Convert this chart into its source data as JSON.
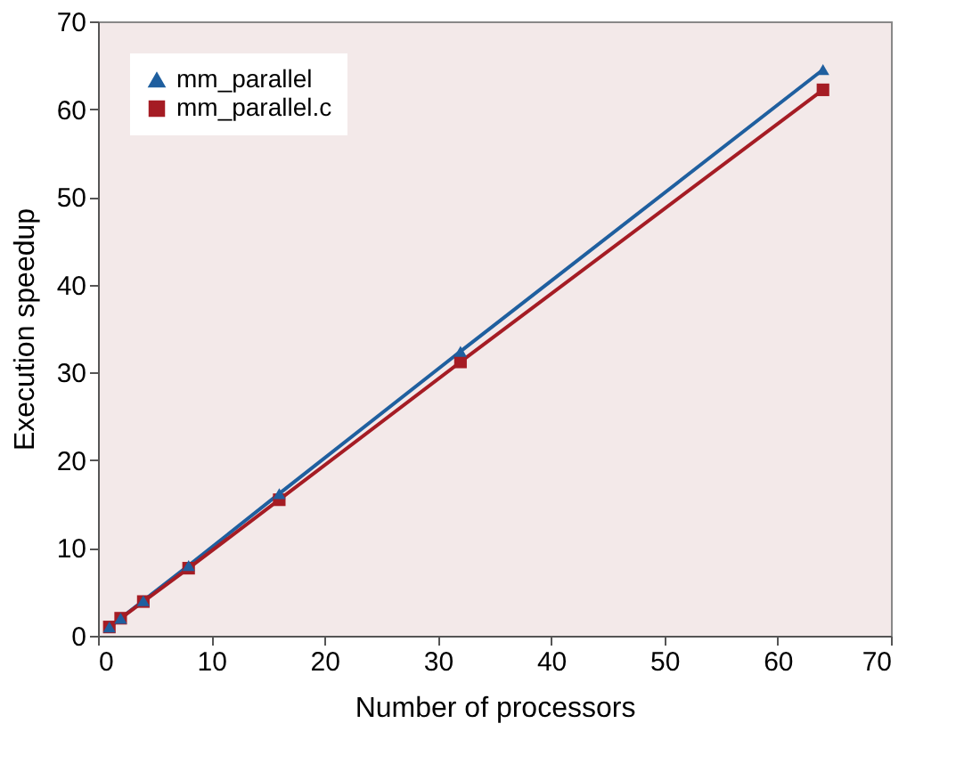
{
  "chart_data": {
    "type": "line",
    "xlabel": "Number of processors",
    "ylabel": "Execution speedup",
    "x": [
      1,
      2,
      4,
      8,
      16,
      32,
      64
    ],
    "series": [
      {
        "name": "mm_parallel",
        "color": "#1f5f9f",
        "marker": "triangle",
        "values": [
          1,
          2,
          4,
          8,
          16.2,
          32.4,
          64.5
        ]
      },
      {
        "name": "mm_parallel.c",
        "color": "#a51c24",
        "marker": "square",
        "values": [
          1,
          2,
          3.9,
          7.7,
          15.5,
          31.2,
          62.2
        ]
      }
    ],
    "xlim": [
      0,
      70
    ],
    "xticks": [
      0,
      10,
      20,
      30,
      40,
      50,
      60,
      70
    ],
    "ylim": [
      0,
      70
    ],
    "yticks": [
      0,
      10,
      20,
      30,
      40,
      50,
      60,
      70
    ],
    "grid": false,
    "legend": "top left",
    "line_style": "solid"
  }
}
